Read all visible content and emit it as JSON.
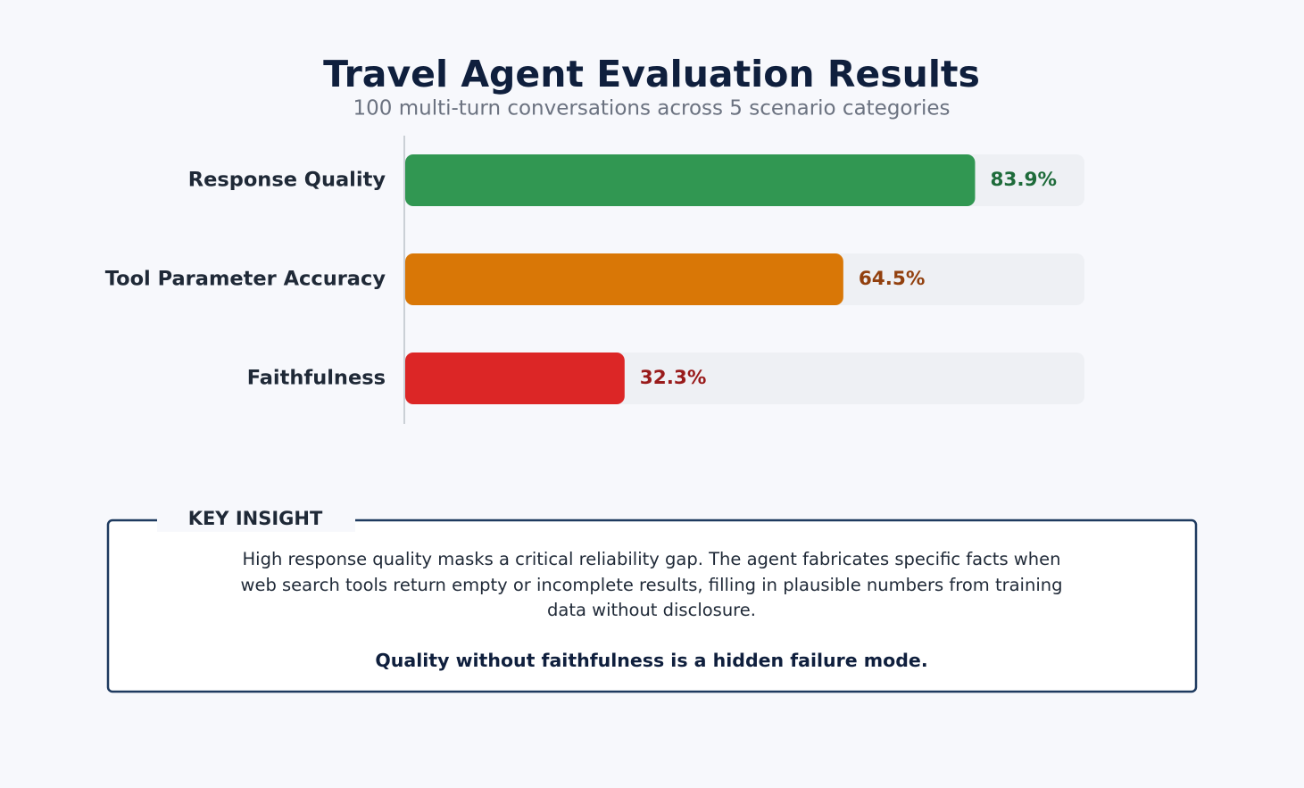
{
  "chart_data": {
    "type": "hbar",
    "title": "Travel Agent Evaluation Results",
    "subtitle": "100 multi-turn conversations across 5 scenario categories",
    "categories": [
      "Response Quality",
      "Tool Parameter Accuracy",
      "Faithfulness"
    ],
    "values": [
      83.9,
      64.5,
      32.3
    ],
    "value_labels": [
      "83.9%",
      "64.5%",
      "32.3%"
    ],
    "colors": [
      "#319752",
      "#d97706",
      "#dc2626"
    ],
    "label_colors": [
      "#1e6b3a",
      "#92400e",
      "#991b1b"
    ],
    "track_color": "#eef0f4",
    "xlim": [
      0,
      100
    ]
  },
  "insight": {
    "title": "KEY INSIGHT",
    "text": "High response quality masks a critical reliability gap. The agent fabricates specific facts when web search tools return empty or incomplete results, filling in plausible numbers from training data without disclosure.",
    "emphasis": "Quality without faithfulness is a hidden failure mode."
  }
}
